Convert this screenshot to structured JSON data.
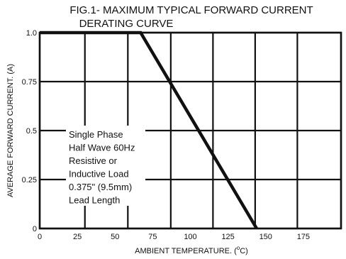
{
  "chart_data": {
    "type": "line",
    "title_line1": "FIG.1- MAXIMUM TYPICAL FORWARD CURRENT",
    "title_line2": "DERATING CURVE",
    "xlabel": "AMBIENT TEMPERATURE. (",
    "xlabel_sup": "o",
    "xlabel_end": "C)",
    "ylabel": "AVERAGE FORWARD CURRENT. (A)",
    "xlim": [
      0,
      200
    ],
    "ylim": [
      0,
      1.0
    ],
    "x_ticks": [
      0,
      25,
      50,
      75,
      100,
      125,
      150,
      175
    ],
    "x_tick_labels": [
      "0",
      "25",
      "50",
      "75",
      "100",
      "125",
      "150",
      "175"
    ],
    "y_ticks": [
      0,
      0.25,
      0.5,
      0.75,
      1.0
    ],
    "y_tick_labels": [
      "0",
      "0.25",
      "0.5",
      "0.75",
      "1.0"
    ],
    "x_grid": [
      0,
      30,
      58.5,
      87,
      115,
      143,
      171,
      200
    ],
    "grid": true,
    "series": [
      {
        "x": [
          0,
          67,
          144
        ],
        "y": [
          1.0,
          1.0,
          0
        ]
      }
    ],
    "annotation": [
      "Single Phase",
      "Half Wave 60Hz",
      "Resistive or",
      "Inductive Load",
      "0.375\" (9.5mm)",
      "Lead Length"
    ]
  }
}
